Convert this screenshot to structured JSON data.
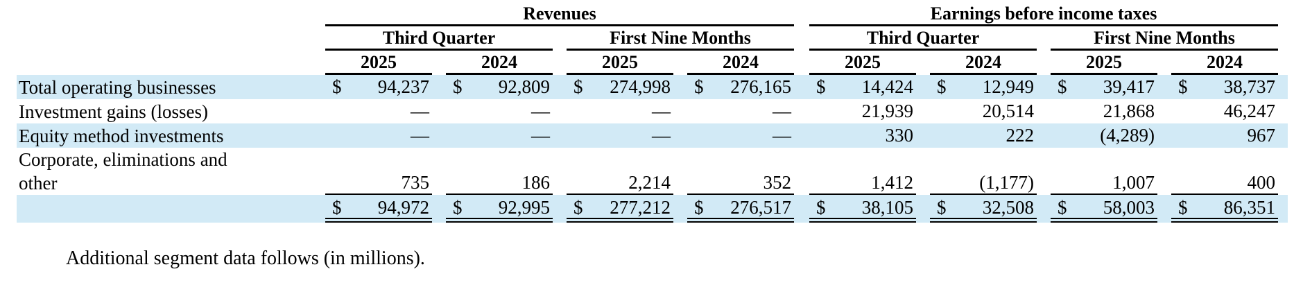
{
  "table": {
    "currency_symbol": "$",
    "group_headers": [
      "Revenues",
      "Earnings before income taxes"
    ],
    "period_headers": [
      "Third Quarter",
      "First Nine Months",
      "Third Quarter",
      "First Nine Months"
    ],
    "year_headers": [
      "2025",
      "2024",
      "2025",
      "2024",
      "2025",
      "2024",
      "2025",
      "2024"
    ],
    "rows": [
      {
        "label": "Total operating businesses",
        "values": [
          "94,237",
          "92,809",
          "274,998",
          "276,165",
          "14,424",
          "12,949",
          "39,417",
          "38,737"
        ]
      },
      {
        "label": "Investment gains (losses)",
        "values": [
          "—",
          "—",
          "—",
          "—",
          "21,939",
          "20,514",
          "21,868",
          "46,247"
        ]
      },
      {
        "label": "Equity method investments",
        "values": [
          "—",
          "—",
          "—",
          "—",
          "330",
          "222",
          "(4,289)",
          "967"
        ]
      },
      {
        "label": "Corporate, eliminations and other",
        "values": [
          "735",
          "186",
          "2,214",
          "352",
          "1,412",
          "(1,177)",
          "1,007",
          "400"
        ]
      },
      {
        "label": "",
        "values": [
          "94,972",
          "92,995",
          "277,212",
          "276,517",
          "38,105",
          "32,508",
          "58,003",
          "86,351"
        ]
      }
    ],
    "footnote": "Additional segment data follows (in millions)."
  },
  "colors": {
    "row_highlight": "#d2eaf6"
  }
}
